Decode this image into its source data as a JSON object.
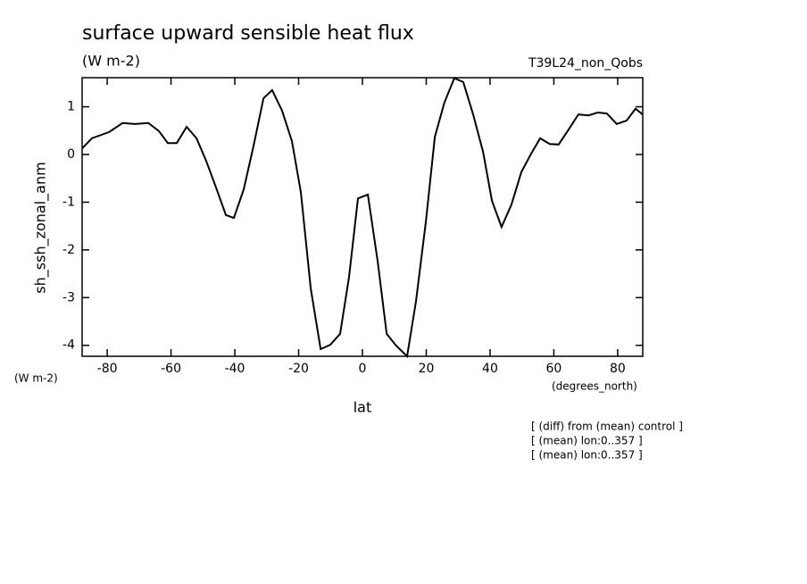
{
  "chart_data": {
    "type": "line",
    "title": "surface upward sensible heat flux",
    "subtitle": "(W m-2)",
    "run_label": "T39L24_non_Qobs",
    "y_label": "sh_ssh_zonal_anm",
    "y_units": "(W m-2)",
    "x_label": "lat",
    "x_units": "(degrees_north)",
    "notes": [
      "[ (diff) from (mean) control ]",
      "[ (mean) lon:0..357 ]",
      "[ (mean) lon:0..357 ]"
    ],
    "x": [
      -87.8,
      -84.8,
      -79.4,
      -75.2,
      -71.3,
      -67.1,
      -63.8,
      -61,
      -58.2,
      -55.1,
      -52,
      -49,
      -45.9,
      -42.8,
      -40.3,
      -37.2,
      -34.1,
      -31,
      -28.3,
      -25.2,
      -22.1,
      -19.3,
      -16.2,
      -13.1,
      -10.1,
      -7,
      -4.2,
      -1.4,
      1.7,
      4.8,
      7.6,
      10.6,
      14,
      16.8,
      19.9,
      22.7,
      25.7,
      28.8,
      31.6,
      34.7,
      37.8,
      40.6,
      43.6,
      46.7,
      49.8,
      52.9,
      55.7,
      58.7,
      61.5,
      64.6,
      67.7,
      70.8,
      73.8,
      76.6,
      79.7,
      82.8,
      85.6,
      87.8
    ],
    "series": [
      {
        "name": "sh_ssh_zonal_anm",
        "color": "#000000",
        "values": [
          0.13,
          0.34,
          0.47,
          0.66,
          0.64,
          0.66,
          0.49,
          0.24,
          0.24,
          0.58,
          0.34,
          -0.13,
          -0.69,
          -1.27,
          -1.33,
          -0.73,
          0.19,
          1.18,
          1.35,
          0.92,
          0.28,
          -0.79,
          -2.81,
          -4.08,
          -3.99,
          -3.76,
          -2.57,
          -0.92,
          -0.84,
          -2.25,
          -3.76,
          -4.01,
          -4.23,
          -3.07,
          -1.4,
          0.37,
          1.09,
          1.6,
          1.52,
          0.84,
          0.06,
          -0.97,
          -1.52,
          -1.05,
          -0.37,
          0.02,
          0.34,
          0.22,
          0.21,
          0.52,
          0.84,
          0.82,
          0.88,
          0.86,
          0.64,
          0.71,
          0.96,
          0.84
        ]
      }
    ],
    "xlim": [
      -87.86,
      87.86
    ],
    "ylim": [
      -4.23,
      1.61
    ],
    "xticks": [
      -80,
      -60,
      -40,
      -20,
      0,
      20,
      40,
      60,
      80
    ],
    "yticks": [
      -4,
      -3,
      -2,
      -1,
      0,
      1
    ],
    "grid": false
  }
}
